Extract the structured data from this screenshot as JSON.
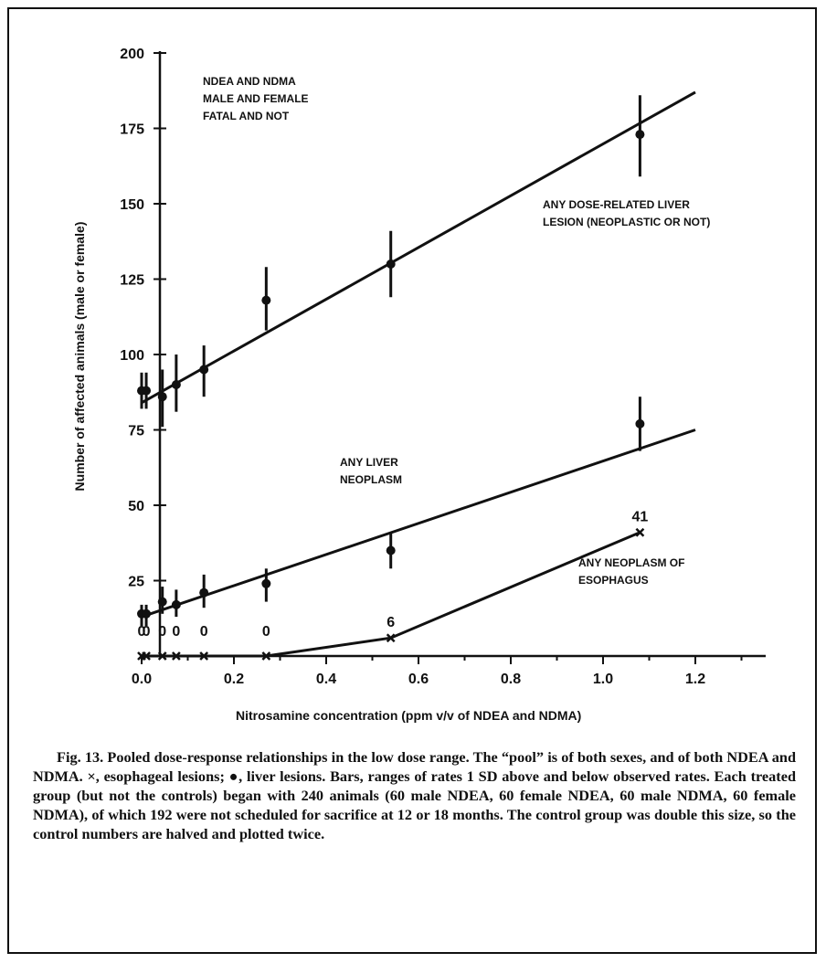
{
  "chart_data": {
    "type": "line",
    "title": "",
    "xlabel": "Nitrosamine concentration  (ppm v/v of NDEA and NDMA)",
    "ylabel": "Number of affected animals  (male or female)",
    "xlim": [
      0.0,
      1.35
    ],
    "ylim": [
      0,
      200
    ],
    "x_ticks": [
      "0.0",
      "0.2",
      "0.4",
      "0.6",
      "0.8",
      "1.0",
      "1.2"
    ],
    "y_ticks": [
      "25",
      "50",
      "75",
      "100",
      "125",
      "150",
      "175",
      "200"
    ],
    "legend_text": [
      "NDEA AND NDMA",
      "MALE AND FEMALE",
      "FATAL AND NOT"
    ],
    "series": [
      {
        "name": "ANY DOSE-RELATED LIVER LESION  (NEOPLASTIC OR NOT)",
        "label_lines": [
          "ANY DOSE-RELATED LIVER",
          "LESION  (NEOPLASTIC OR NOT)"
        ],
        "marker": "dot",
        "points": [
          {
            "x": 0.0,
            "y": 88,
            "lo": 82,
            "hi": 94
          },
          {
            "x": 0.01,
            "y": 88,
            "lo": 82,
            "hi": 94
          },
          {
            "x": 0.045,
            "y": 86,
            "lo": 76,
            "hi": 95
          },
          {
            "x": 0.075,
            "y": 90,
            "lo": 81,
            "hi": 100
          },
          {
            "x": 0.135,
            "y": 95,
            "lo": 86,
            "hi": 103
          },
          {
            "x": 0.27,
            "y": 118,
            "lo": 108,
            "hi": 129
          },
          {
            "x": 0.54,
            "y": 130,
            "lo": 119,
            "hi": 141
          },
          {
            "x": 1.08,
            "y": 173,
            "lo": 159,
            "hi": 186
          }
        ],
        "fit": [
          [
            0.0,
            84
          ],
          [
            1.2,
            187
          ]
        ]
      },
      {
        "name": "ANY LIVER NEOPLASM",
        "label_lines": [
          "ANY LIVER",
          "NEOPLASM"
        ],
        "marker": "dot",
        "points": [
          {
            "x": 0.0,
            "y": 14,
            "lo": 10,
            "hi": 17
          },
          {
            "x": 0.01,
            "y": 14,
            "lo": 10,
            "hi": 17
          },
          {
            "x": 0.045,
            "y": 18,
            "lo": 14,
            "hi": 23
          },
          {
            "x": 0.075,
            "y": 17,
            "lo": 13,
            "hi": 22
          },
          {
            "x": 0.135,
            "y": 21,
            "lo": 16,
            "hi": 27
          },
          {
            "x": 0.27,
            "y": 24,
            "lo": 18,
            "hi": 29
          },
          {
            "x": 0.54,
            "y": 35,
            "lo": 29,
            "hi": 41
          },
          {
            "x": 1.08,
            "y": 77,
            "lo": 68,
            "hi": 86
          }
        ],
        "fit": [
          [
            0.0,
            13
          ],
          [
            1.2,
            75
          ]
        ]
      },
      {
        "name": "ANY NEOPLASM OF ESOPHAGUS",
        "label_lines": [
          "ANY NEOPLASM OF",
          "ESOPHAGUS"
        ],
        "marker": "x",
        "points": [
          {
            "x": 0.0,
            "y": 0
          },
          {
            "x": 0.01,
            "y": 0
          },
          {
            "x": 0.045,
            "y": 0
          },
          {
            "x": 0.075,
            "y": 0
          },
          {
            "x": 0.135,
            "y": 0
          },
          {
            "x": 0.27,
            "y": 0
          },
          {
            "x": 0.54,
            "y": 6
          },
          {
            "x": 1.08,
            "y": 41
          }
        ],
        "point_labels": [
          {
            "x": 0.0,
            "text": "0"
          },
          {
            "x": 0.01,
            "text": "0"
          },
          {
            "x": 0.045,
            "text": "0"
          },
          {
            "x": 0.075,
            "text": "0"
          },
          {
            "x": 0.135,
            "text": "0"
          },
          {
            "x": 0.27,
            "text": "0"
          },
          {
            "x": 0.54,
            "text": "6"
          },
          {
            "x": 1.08,
            "text": "41"
          }
        ]
      }
    ]
  },
  "caption": {
    "paragraph": "Fig. 13. Pooled dose-response relationships in the low dose range. The “pool” is of both sexes, and of both NDEA and NDMA. ×, esophageal lesions; ●, liver lesions. Bars, ranges of rates 1 SD above and below observed rates. Each treated group (but not the controls) began with 240 animals (60 male NDEA, 60 female NDEA, 60 male NDMA, 60 female NDMA), of which 192 were not scheduled for sacrifice at 12 or 18 months. The control group was double this size, so the control numbers are halved and plotted twice."
  }
}
